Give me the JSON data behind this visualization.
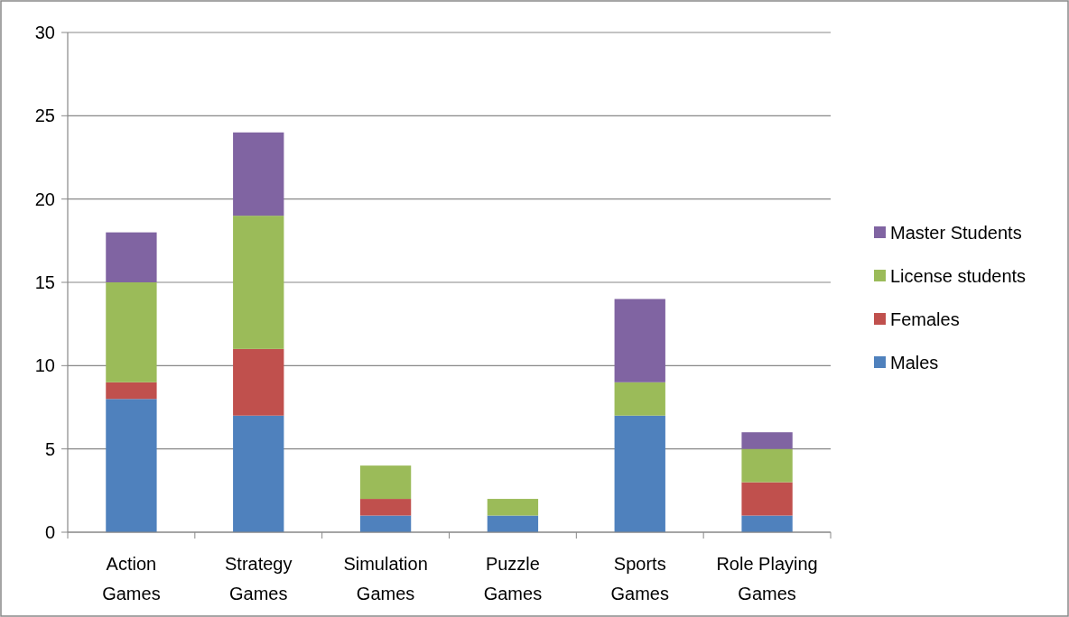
{
  "chart_data": {
    "type": "bar",
    "stacked": true,
    "categories": [
      "Action Games",
      "Strategy Games",
      "Simulation Games",
      "Puzzle Games",
      "Sports Games",
      "Role Playing Games"
    ],
    "series": [
      {
        "name": "Males",
        "color": "#4f81bd",
        "values": [
          8,
          7,
          1,
          1,
          7,
          1
        ]
      },
      {
        "name": "Females",
        "color": "#c0504d",
        "values": [
          1,
          4,
          1,
          0,
          0,
          2
        ]
      },
      {
        "name": "License students",
        "color": "#9bbb59",
        "values": [
          6,
          8,
          2,
          1,
          2,
          2
        ]
      },
      {
        "name": "Master Students",
        "color": "#8064a2",
        "values": [
          3,
          5,
          0,
          0,
          5,
          1
        ]
      }
    ],
    "ylim": [
      0,
      30
    ],
    "yticks": [
      0,
      5,
      10,
      15,
      20,
      25,
      30
    ],
    "grid": "y",
    "legend": "right"
  }
}
